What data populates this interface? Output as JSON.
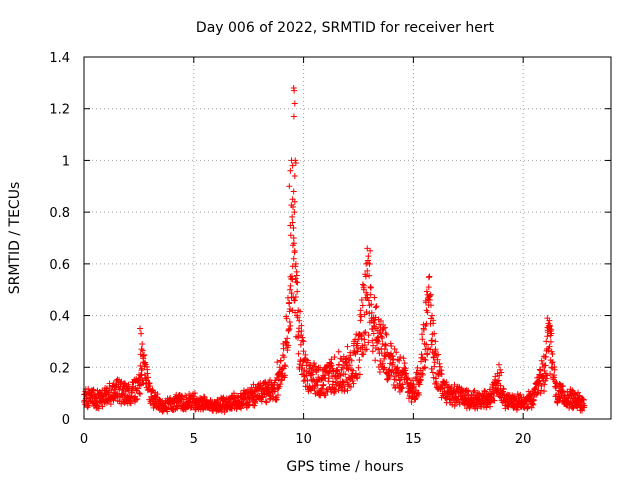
{
  "chart_data": {
    "type": "scatter",
    "title": "Day 006 of 2022, SRMTID for receiver hert",
    "xlabel": "GPS time / hours",
    "ylabel": "SRMTID / TECUs",
    "xlim": [
      0,
      24
    ],
    "ylim": [
      0,
      1.4
    ],
    "xticks": [
      0,
      5,
      10,
      15,
      20
    ],
    "yticks": [
      0,
      0.2,
      0.4,
      0.6,
      0.8,
      1,
      1.2,
      1.4
    ],
    "xtick_labels": [
      "0",
      "5",
      "10",
      "15",
      "20"
    ],
    "ytick_labels": [
      "0",
      "0.2",
      "0.4",
      "0.6",
      "0.8",
      "1",
      "1.2",
      "1.4"
    ],
    "grid": true,
    "marker": "+",
    "color": "#ff0000",
    "series": [
      {
        "name": "SRMTID",
        "profile": [
          [
            0.0,
            0.09
          ],
          [
            0.5,
            0.08
          ],
          [
            1.0,
            0.09
          ],
          [
            1.5,
            0.11
          ],
          [
            2.0,
            0.09
          ],
          [
            2.5,
            0.12
          ],
          [
            2.7,
            0.22
          ],
          [
            3.0,
            0.1
          ],
          [
            3.5,
            0.05
          ],
          [
            4.0,
            0.06
          ],
          [
            5.0,
            0.07
          ],
          [
            6.0,
            0.05
          ],
          [
            7.0,
            0.07
          ],
          [
            8.0,
            0.1
          ],
          [
            8.8,
            0.12
          ],
          [
            9.0,
            0.18
          ],
          [
            9.3,
            0.35
          ],
          [
            9.5,
            0.75
          ],
          [
            9.7,
            0.4
          ],
          [
            10.0,
            0.2
          ],
          [
            10.5,
            0.15
          ],
          [
            11.0,
            0.14
          ],
          [
            11.5,
            0.18
          ],
          [
            12.0,
            0.17
          ],
          [
            12.5,
            0.25
          ],
          [
            12.8,
            0.42
          ],
          [
            13.0,
            0.5
          ],
          [
            13.3,
            0.32
          ],
          [
            13.7,
            0.25
          ],
          [
            14.0,
            0.2
          ],
          [
            14.5,
            0.18
          ],
          [
            15.0,
            0.1
          ],
          [
            15.3,
            0.18
          ],
          [
            15.7,
            0.42
          ],
          [
            16.0,
            0.2
          ],
          [
            16.5,
            0.1
          ],
          [
            17.0,
            0.09
          ],
          [
            18.0,
            0.07
          ],
          [
            18.5,
            0.08
          ],
          [
            18.9,
            0.14
          ],
          [
            19.2,
            0.07
          ],
          [
            20.0,
            0.06
          ],
          [
            20.5,
            0.08
          ],
          [
            21.0,
            0.2
          ],
          [
            21.2,
            0.3
          ],
          [
            21.5,
            0.1
          ],
          [
            22.0,
            0.08
          ],
          [
            22.5,
            0.07
          ],
          [
            22.8,
            0.06
          ]
        ],
        "spikes": [
          [
            2.55,
            0.35
          ],
          [
            2.6,
            0.33
          ],
          [
            2.65,
            0.29
          ],
          [
            2.62,
            0.27
          ],
          [
            2.58,
            0.25
          ],
          [
            2.7,
            0.22
          ],
          [
            9.55,
            1.28
          ],
          [
            9.57,
            1.27
          ],
          [
            9.6,
            1.22
          ],
          [
            9.56,
            1.17
          ],
          [
            9.45,
            1.0
          ],
          [
            9.5,
            0.98
          ],
          [
            9.62,
            1.0
          ],
          [
            9.65,
            0.99
          ],
          [
            9.4,
            0.96
          ],
          [
            9.6,
            0.94
          ],
          [
            9.35,
            0.9
          ],
          [
            9.55,
            0.88
          ],
          [
            9.5,
            0.85
          ],
          [
            9.6,
            0.84
          ],
          [
            9.52,
            0.82
          ],
          [
            9.58,
            0.8
          ],
          [
            9.5,
            0.76
          ],
          [
            9.55,
            0.7
          ],
          [
            9.6,
            0.65
          ],
          [
            9.65,
            0.6
          ],
          [
            9.4,
            0.55
          ],
          [
            9.38,
            0.5
          ],
          [
            9.45,
            0.47
          ],
          [
            9.35,
            0.45
          ],
          [
            9.5,
            0.42
          ],
          [
            9.7,
            0.4
          ],
          [
            9.8,
            0.38
          ],
          [
            9.4,
            0.36
          ],
          [
            9.9,
            0.34
          ],
          [
            10.0,
            0.3
          ],
          [
            9.75,
            0.32
          ],
          [
            12.9,
            0.66
          ],
          [
            12.95,
            0.63
          ],
          [
            12.85,
            0.6
          ],
          [
            12.8,
            0.56
          ],
          [
            12.7,
            0.52
          ],
          [
            12.75,
            0.5
          ],
          [
            12.9,
            0.48
          ],
          [
            12.65,
            0.46
          ],
          [
            13.0,
            0.44
          ],
          [
            12.6,
            0.42
          ],
          [
            13.1,
            0.38
          ],
          [
            13.2,
            0.36
          ],
          [
            13.3,
            0.35
          ],
          [
            13.5,
            0.33
          ],
          [
            13.4,
            0.3
          ],
          [
            13.6,
            0.29
          ],
          [
            13.7,
            0.27
          ],
          [
            13.8,
            0.25
          ],
          [
            15.7,
            0.51
          ],
          [
            15.65,
            0.48
          ],
          [
            15.75,
            0.46
          ],
          [
            15.8,
            0.44
          ],
          [
            15.6,
            0.42
          ],
          [
            15.85,
            0.4
          ],
          [
            15.9,
            0.37
          ],
          [
            15.55,
            0.36
          ],
          [
            15.95,
            0.33
          ],
          [
            16.0,
            0.3
          ],
          [
            21.1,
            0.39
          ],
          [
            21.15,
            0.37
          ],
          [
            21.2,
            0.35
          ],
          [
            21.25,
            0.34
          ],
          [
            21.1,
            0.32
          ],
          [
            21.05,
            0.3
          ],
          [
            21.2,
            0.28
          ],
          [
            21.3,
            0.26
          ],
          [
            21.0,
            0.24
          ],
          [
            18.9,
            0.21
          ],
          [
            18.95,
            0.19
          ],
          [
            19.0,
            0.18
          ],
          [
            8.8,
            0.22
          ],
          [
            12.3,
            0.3
          ],
          [
            14.4,
            0.24
          ],
          [
            12.0,
            0.28
          ],
          [
            11.6,
            0.26
          ]
        ]
      }
    ]
  }
}
